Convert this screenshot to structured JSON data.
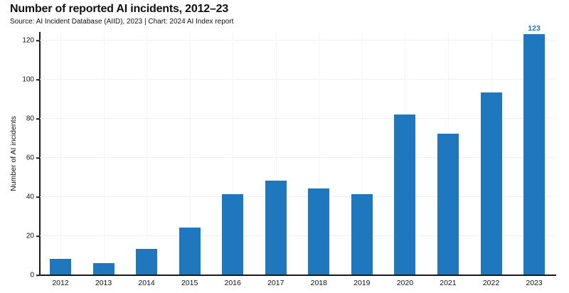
{
  "header": {
    "title": "Number of reported AI incidents, 2012–23",
    "source": "Source: AI Incident Database (AIID), 2023 | Chart: 2024 AI Index report"
  },
  "chart_data": {
    "type": "bar",
    "title": "Number of reported AI incidents, 2012–23",
    "categories": [
      "2012",
      "2013",
      "2014",
      "2015",
      "2016",
      "2017",
      "2018",
      "2019",
      "2020",
      "2021",
      "2022",
      "2023"
    ],
    "values": [
      8,
      6,
      13,
      24,
      41,
      48,
      44,
      41,
      82,
      72,
      93,
      123
    ],
    "xlabel": "",
    "ylabel": "Number of AI incidents",
    "ylim": [
      0,
      130
    ],
    "yticks": [
      0,
      20,
      40,
      60,
      80,
      100,
      120
    ],
    "grid": true,
    "legend_position": "none",
    "annotations": [
      {
        "category": "2023",
        "text": "123"
      }
    ]
  },
  "colors": {
    "bar": "#1f78bd",
    "annotation": "#1f78bd",
    "axis": "#1a1a1a",
    "grid_h": "#f2f2f2",
    "grid_v": "#f5f5f5",
    "text": "#111111"
  }
}
